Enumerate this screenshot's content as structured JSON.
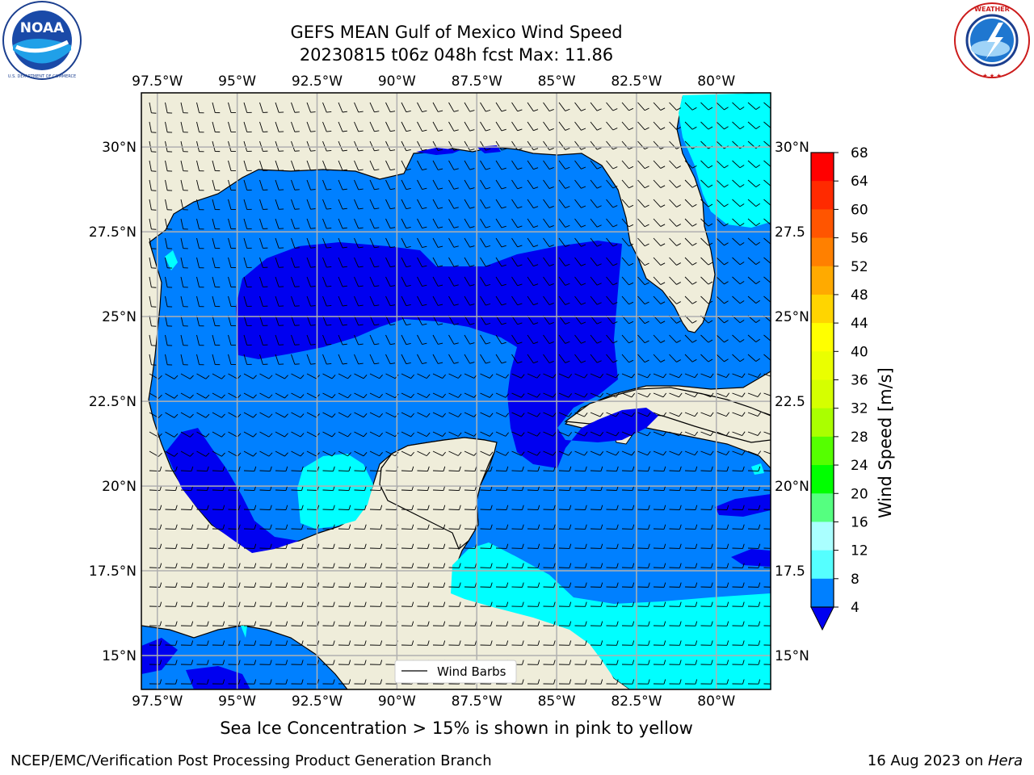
{
  "header": {
    "title_line1": "GEFS MEAN Gulf of Mexico Wind Speed",
    "title_line2": "20230815 t06z 048h fcst   Max: 11.86"
  },
  "logos": {
    "left": {
      "name": "noaa-logo",
      "text": "NOAA",
      "ring_text": "NATIONAL OCEANIC AND ATMOSPHERIC ADMINISTRATION · U.S. DEPARTMENT OF COMMERCE"
    },
    "right": {
      "name": "nws-logo",
      "ring_text": "NATIONAL WEATHER SERVICE"
    }
  },
  "map": {
    "lon_labels": [
      "97.5°W",
      "95°W",
      "92.5°W",
      "90°W",
      "87.5°W",
      "85°W",
      "82.5°W",
      "80°W"
    ],
    "lat_labels_left": [
      "30°N",
      "27.5°N",
      "25°N",
      "22.5°N",
      "20°N",
      "17.5°N",
      "15°N"
    ],
    "lat_labels_right": [
      "30°N",
      "27.5",
      "25°N",
      "22.5",
      "20°N",
      "17.5",
      "15°N"
    ],
    "lon_range": [
      -98,
      -78.3
    ],
    "lat_range": [
      14,
      31.6
    ],
    "legend_label": "Wind Barbs",
    "colors": {
      "land": "#efedda",
      "ocean_4_8": "#0080ff",
      "ocean_lt4": "#0000f0",
      "ocean_8_12": "#00ffff",
      "grid": "#b0b0b0"
    }
  },
  "colorbar": {
    "label": "Wind Speed [m/s]",
    "ticks": [
      "68",
      "64",
      "60",
      "56",
      "52",
      "48",
      "44",
      "40",
      "36",
      "32",
      "28",
      "24",
      "20",
      "16",
      "12",
      "8",
      "4"
    ],
    "colors": [
      "#ff0000",
      "#ff2a00",
      "#ff5500",
      "#ff8000",
      "#ffaa00",
      "#ffd500",
      "#ffff00",
      "#eaff00",
      "#d5ff00",
      "#aaff00",
      "#55ff00",
      "#00ff00",
      "#55ff80",
      "#aaffff",
      "#55ffff",
      "#00ffff",
      "#0080ff"
    ],
    "extend_color": "#0000f0"
  },
  "caption": "Sea Ice Concentration > 15% is shown in pink to yellow",
  "footer": {
    "left": "NCEP/EMC/Verification Post Processing Product Generation Branch",
    "right_date": "16 Aug 2023 on ",
    "right_host": "Hera"
  }
}
